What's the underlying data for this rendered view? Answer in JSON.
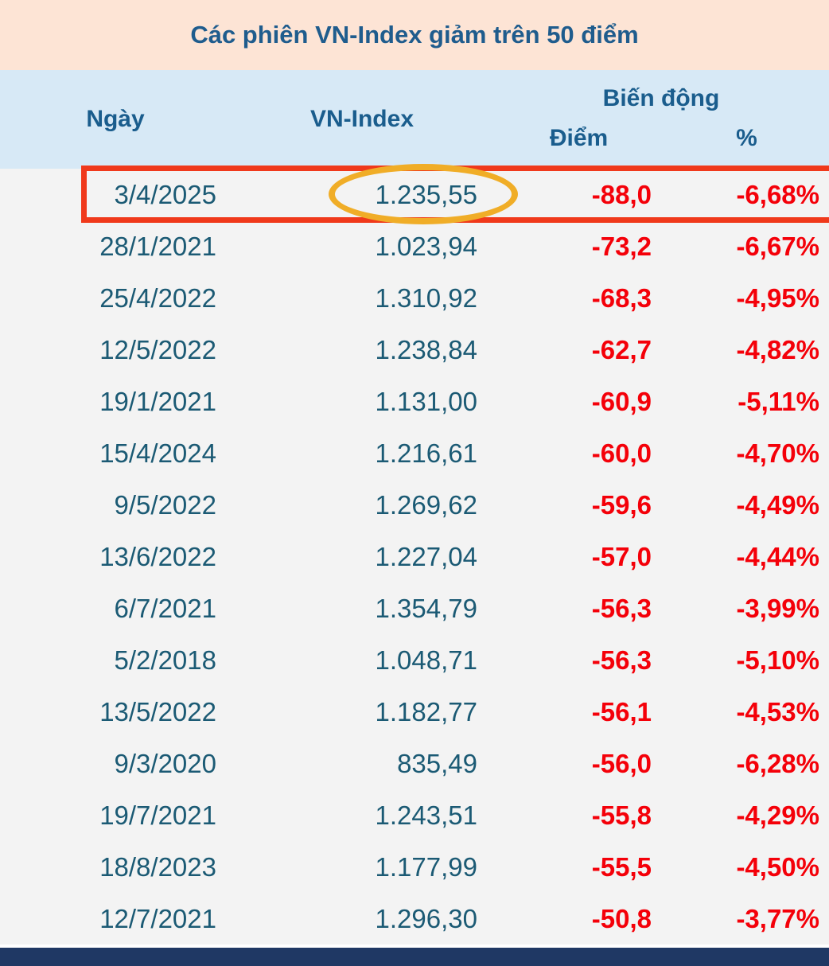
{
  "title": "Các phiên VN-Index giảm trên 50 điểm",
  "header": {
    "date": "Ngày",
    "index": "VN-Index",
    "change": "Biến động",
    "points": "Điểm",
    "percent": "%"
  },
  "colors": {
    "title_bg": "#fde4d5",
    "header_bg": "#d7e9f6",
    "heading_text": "#1a5d8d",
    "value_text": "#1b5a74",
    "negative_text": "#f40009",
    "highlight_border": "#f0391b",
    "circle_annotation": "#f0ad27",
    "footer_bar": "#1f3864"
  },
  "annotations": {
    "highlighted_row_date": "3/4/2025",
    "circled_value": "1.235,55"
  },
  "chart_data": {
    "type": "table",
    "title": "Các phiên VN-Index giảm trên 50 điểm",
    "columns": [
      "Ngày",
      "VN-Index",
      "Biến động Điểm",
      "Biến động %"
    ],
    "rows": [
      {
        "date": "3/4/2025",
        "index": "1.235,55",
        "points": "-88,0",
        "percent": "-6,68%",
        "highlighted": true
      },
      {
        "date": "28/1/2021",
        "index": "1.023,94",
        "points": "-73,2",
        "percent": "-6,67%",
        "highlighted": false
      },
      {
        "date": "25/4/2022",
        "index": "1.310,92",
        "points": "-68,3",
        "percent": "-4,95%",
        "highlighted": false
      },
      {
        "date": "12/5/2022",
        "index": "1.238,84",
        "points": "-62,7",
        "percent": "-4,82%",
        "highlighted": false
      },
      {
        "date": "19/1/2021",
        "index": "1.131,00",
        "points": "-60,9",
        "percent": "-5,11%",
        "highlighted": false
      },
      {
        "date": "15/4/2024",
        "index": "1.216,61",
        "points": "-60,0",
        "percent": "-4,70%",
        "highlighted": false
      },
      {
        "date": "9/5/2022",
        "index": "1.269,62",
        "points": "-59,6",
        "percent": "-4,49%",
        "highlighted": false
      },
      {
        "date": "13/6/2022",
        "index": "1.227,04",
        "points": "-57,0",
        "percent": "-4,44%",
        "highlighted": false
      },
      {
        "date": "6/7/2021",
        "index": "1.354,79",
        "points": "-56,3",
        "percent": "-3,99%",
        "highlighted": false
      },
      {
        "date": "5/2/2018",
        "index": "1.048,71",
        "points": "-56,3",
        "percent": "-5,10%",
        "highlighted": false
      },
      {
        "date": "13/5/2022",
        "index": "1.182,77",
        "points": "-56,1",
        "percent": "-4,53%",
        "highlighted": false
      },
      {
        "date": "9/3/2020",
        "index": "835,49",
        "points": "-56,0",
        "percent": "-6,28%",
        "highlighted": false
      },
      {
        "date": "19/7/2021",
        "index": "1.243,51",
        "points": "-55,8",
        "percent": "-4,29%",
        "highlighted": false
      },
      {
        "date": "18/8/2023",
        "index": "1.177,99",
        "points": "-55,5",
        "percent": "-4,50%",
        "highlighted": false
      },
      {
        "date": "12/7/2021",
        "index": "1.296,30",
        "points": "-50,8",
        "percent": "-3,77%",
        "highlighted": false
      }
    ]
  }
}
